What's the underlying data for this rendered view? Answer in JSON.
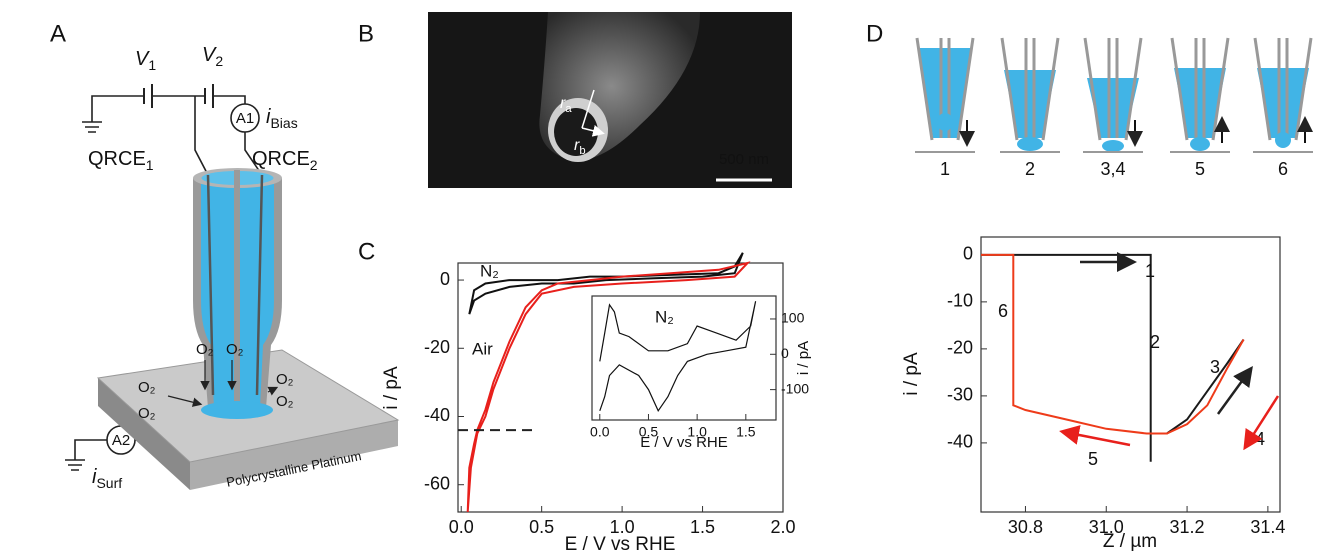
{
  "panel_labels": [
    "A",
    "B",
    "C",
    "D"
  ],
  "panel_a": {
    "voltages": [
      {
        "symbol": "V",
        "subscript": "1"
      },
      {
        "symbol": "V",
        "subscript": "2"
      }
    ],
    "ammeters": [
      "A1",
      "A2"
    ],
    "currents": [
      {
        "symbol": "i",
        "subscript": "Bias"
      },
      {
        "symbol": "i",
        "subscript": "Surf"
      }
    ],
    "electrodes": [
      {
        "symbol": "QRCE",
        "subscript": "1"
      },
      {
        "symbol": "QRCE",
        "subscript": "2"
      }
    ],
    "oxygen": [
      "O₂",
      "O₂",
      "O₂",
      "O₂",
      "O₂",
      "O₂"
    ],
    "substrate": "Polycrystalline Platinum"
  },
  "panel_b": {
    "radii": [
      {
        "symbol": "r",
        "subscript": "a"
      },
      {
        "symbol": "r",
        "subscript": "b"
      }
    ],
    "scale_bar": "500 nm"
  },
  "panel_d": {
    "steps": [
      "1",
      "2",
      "3,4",
      "5",
      "6"
    ]
  },
  "chart_data": [
    {
      "type": "line",
      "xlabel": "E / V vs RHE",
      "ylabel": "i / pA",
      "xlim": [
        -0.02,
        2.0
      ],
      "ylim": [
        -68,
        5
      ],
      "xticks": [
        {
          "value": 0,
          "label": "0.0"
        },
        0.5,
        {
          "value": 1,
          "label": "1.0"
        },
        1.5,
        {
          "value": 2,
          "label": "2.0"
        }
      ],
      "yticks": [
        0,
        -20,
        -40,
        -60
      ],
      "series": [
        {
          "name": "N₂",
          "color": "#111111",
          "x": [
            0.05,
            0.08,
            0.15,
            0.3,
            0.6,
            0.8,
            1.0,
            1.3,
            1.6,
            1.7,
            1.75,
            1.7,
            1.5,
            1.2,
            0.9,
            0.7,
            0.5,
            0.3,
            0.15,
            0.08,
            0.05
          ],
          "values": [
            -10,
            -3,
            -1,
            0,
            0,
            1,
            1,
            1.5,
            2,
            4,
            8,
            2,
            1,
            0.5,
            0,
            -1,
            -1,
            -2,
            -4,
            -6,
            -10
          ]
        },
        {
          "name": "Air",
          "color": "#e8201c",
          "x": [
            0.04,
            0.05,
            0.08,
            0.1,
            0.15,
            0.2,
            0.3,
            0.4,
            0.5,
            0.6,
            0.8,
            1.0,
            1.3,
            1.6,
            1.78,
            1.7,
            1.4,
            1.0,
            0.7,
            0.5,
            0.4,
            0.3,
            0.2,
            0.15,
            0.1,
            0.06,
            0.04
          ],
          "values": [
            -68,
            -55,
            -48,
            -44,
            -38,
            -30,
            -18,
            -8,
            -3,
            -1,
            0,
            1,
            2,
            3,
            5,
            1,
            0,
            -1,
            -2,
            -4,
            -10,
            -20,
            -32,
            -40,
            -45,
            -55,
            -68
          ]
        }
      ],
      "hline": {
        "y": -44,
        "x": [
          -0.02,
          0.46
        ]
      }
    },
    {
      "type": "line",
      "xlabel": "E / V vs RHE",
      "ylabel": "i / pA",
      "y_side": "right",
      "xlim": [
        -0.08,
        1.81
      ],
      "ylim": [
        -186,
        165
      ],
      "xticks": [
        {
          "value": 0,
          "label": "0.0"
        },
        0.5,
        {
          "value": 1,
          "label": "1.0"
        },
        1.5
      ],
      "yticks": [
        100,
        0,
        -100
      ],
      "series": [
        {
          "name": "N₂",
          "color": "#111111",
          "x": [
            0.0,
            0.05,
            0.1,
            0.15,
            0.2,
            0.3,
            0.5,
            0.7,
            0.9,
            1.0,
            1.2,
            1.4,
            1.55,
            1.6,
            1.5,
            1.3,
            1.1,
            0.9,
            0.8,
            0.7,
            0.6,
            0.5,
            0.4,
            0.2,
            0.1,
            0.05,
            0.0
          ],
          "values": [
            -20,
            60,
            140,
            120,
            60,
            50,
            10,
            10,
            30,
            80,
            60,
            40,
            80,
            150,
            20,
            10,
            0,
            -20,
            -60,
            -120,
            -160,
            -100,
            -60,
            -30,
            -60,
            -120,
            -160
          ]
        }
      ]
    },
    {
      "type": "line",
      "xlabel": "Z / µm",
      "ylabel": "i / pA",
      "xlim": [
        30.69,
        31.43
      ],
      "ylim": [
        -54.7,
        3.8
      ],
      "xticks": [
        30.8,
        {
          "value": 31,
          "label": "31.0"
        },
        31.2,
        31.4
      ],
      "yticks": [
        0,
        -10,
        -20,
        -30,
        -40
      ],
      "series": [
        {
          "color": "#1a1a1a",
          "x": [
            30.69,
            31.11,
            31.11,
            31.11,
            31.15,
            31.2,
            31.25,
            31.3,
            31.34
          ],
          "values": [
            0,
            0,
            -44,
            -38,
            -38,
            -35,
            -29,
            -23,
            -18
          ]
        },
        {
          "color": "#ee3b1a",
          "x": [
            31.34,
            31.3,
            31.25,
            31.2,
            31.15,
            31.1,
            31.0,
            30.9,
            30.8,
            30.77,
            30.77,
            30.69
          ],
          "values": [
            -18,
            -24,
            -32,
            -36,
            -38,
            -38,
            -37,
            -35,
            -33,
            -32,
            0,
            0
          ]
        }
      ],
      "annotations": [
        "1",
        "2",
        "3",
        "4",
        "5",
        "6"
      ]
    }
  ]
}
